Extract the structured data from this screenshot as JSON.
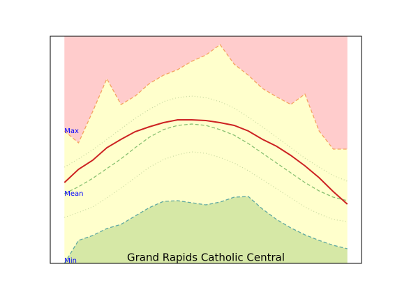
{
  "chart_data": {
    "type": "line",
    "title": "Grand Rapids Catholic Central",
    "x": [
      0,
      2,
      4,
      6,
      8,
      10,
      12,
      14,
      16,
      18,
      20,
      22,
      24,
      26,
      28,
      30,
      32,
      34,
      36,
      38,
      40
    ],
    "xlim": [
      -2,
      42
    ],
    "ylim": [
      0,
      326
    ],
    "fill_above_max": "#ffcccc",
    "fill_between": "#ffffcc",
    "fill_below_min": "#d6e8a6",
    "max": {
      "color": "#f4a460",
      "dash": "5,3",
      "values": [
        190,
        173,
        218,
        265,
        228,
        240,
        258,
        270,
        278,
        290,
        299,
        314,
        286,
        270,
        251,
        239,
        228,
        243,
        190,
        164,
        164
      ]
    },
    "upper": {
      "color": "#c8d8a0",
      "dash": "1,3",
      "values": [
        138,
        150,
        163,
        178,
        193,
        208,
        221,
        232,
        238,
        240,
        238,
        232,
        223,
        210,
        196,
        181,
        166,
        151,
        138,
        126,
        118
      ]
    },
    "mean": {
      "color": "#88c070",
      "dash": "5,3",
      "values": [
        100,
        110,
        122,
        136,
        150,
        166,
        181,
        192,
        198,
        200,
        198,
        192,
        184,
        172,
        158,
        144,
        130,
        116,
        104,
        95,
        90
      ]
    },
    "lower": {
      "color": "#c8d8a0",
      "dash": "1,3",
      "values": [
        66,
        73,
        81,
        94,
        108,
        123,
        138,
        149,
        156,
        160,
        158,
        152,
        144,
        133,
        120,
        107,
        94,
        81,
        71,
        63,
        60
      ]
    },
    "min": {
      "color": "#5fa8a0",
      "dash": "5,3",
      "values": [
        0,
        33,
        40,
        50,
        56,
        68,
        80,
        89,
        90,
        87,
        84,
        88,
        95,
        96,
        78,
        63,
        51,
        41,
        33,
        26,
        21
      ]
    },
    "current": {
      "color": "#cc2222",
      "dash": "none",
      "values": [
        116,
        135,
        148,
        166,
        178,
        189,
        196,
        202,
        206,
        206,
        205,
        202,
        198,
        190,
        178,
        168,
        155,
        140,
        123,
        103,
        85
      ]
    },
    "annotations": {
      "max": "Max",
      "mean": "Mean",
      "min": "Min"
    }
  }
}
